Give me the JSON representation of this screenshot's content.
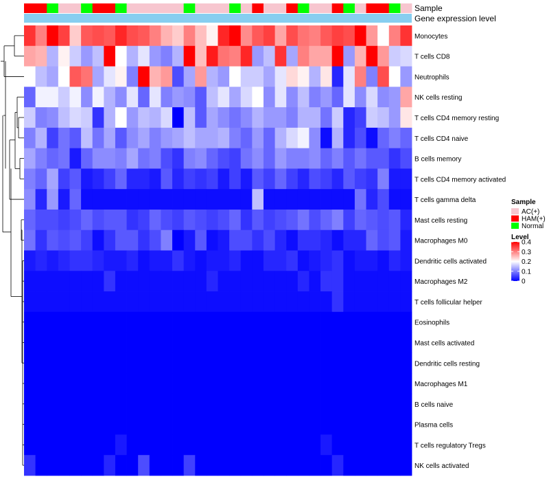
{
  "chart_data": {
    "type": "heatmap",
    "title": "",
    "annotation_rows": [
      "Sample",
      "Gene expression level"
    ],
    "rows": [
      "Monocytes",
      "T cells CD8",
      "Neutrophils",
      "NK cells resting",
      "T cells CD4 memory resting",
      "T cells CD4 naive",
      "B cells memory",
      "T cells CD4 memory activated",
      "T cells gamma delta",
      "Mast cells resting",
      "Macrophages M0",
      "Dendritic cells activated",
      "Macrophages M2",
      "T cells follicular helper",
      "Eosinophils",
      "Mast cells activated",
      "Dendritic cells resting",
      "Macrophages M1",
      "B cells naive",
      "Plasma cells",
      "T cells regulatory  Tregs",
      "NK cells activated"
    ],
    "n_samples": 34,
    "sample_groups": [
      "HAM(+)",
      "HAM(+)",
      "Normal",
      "AC(+)",
      "AC(+)",
      "Normal",
      "HAM(+)",
      "HAM(+)",
      "Normal",
      "AC(+)",
      "AC(+)",
      "AC(+)",
      "AC(+)",
      "AC(+)",
      "Normal",
      "AC(+)",
      "AC(+)",
      "AC(+)",
      "Normal",
      "AC(+)",
      "HAM(+)",
      "AC(+)",
      "AC(+)",
      "HAM(+)",
      "Normal",
      "AC(+)",
      "AC(+)",
      "HAM(+)",
      "Normal",
      "AC(+)",
      "HAM(+)",
      "HAM(+)",
      "Normal",
      "AC(+)"
    ],
    "values": [
      [
        0.36,
        0.3,
        0.4,
        0.35,
        0.24,
        0.33,
        0.34,
        0.33,
        0.37,
        0.34,
        0.33,
        0.3,
        0.26,
        0.24,
        0.3,
        0.25,
        0.21,
        0.37,
        0.4,
        0.29,
        0.33,
        0.35,
        0.27,
        0.34,
        0.31,
        0.3,
        0.33,
        0.35,
        0.34,
        0.4,
        0.28,
        0.2,
        0.3,
        0.36
      ],
      [
        0.27,
        0.26,
        0.14,
        0.21,
        0.16,
        0.12,
        0.15,
        0.4,
        0.2,
        0.14,
        0.18,
        0.12,
        0.1,
        0.14,
        0.4,
        0.25,
        0.38,
        0.31,
        0.3,
        0.37,
        0.12,
        0.15,
        0.36,
        0.13,
        0.3,
        0.27,
        0.27,
        0.4,
        0.12,
        0.26,
        0.4,
        0.28,
        0.16,
        0.17
      ],
      [
        0.2,
        0.15,
        0.13,
        0.2,
        0.33,
        0.31,
        0.13,
        0.18,
        0.21,
        0.1,
        0.4,
        0.26,
        0.28,
        0.06,
        0.13,
        0.28,
        0.14,
        0.12,
        0.2,
        0.16,
        0.16,
        0.13,
        0.18,
        0.23,
        0.21,
        0.14,
        0.22,
        0.03,
        0.18,
        0.3,
        0.1,
        0.34,
        0.2,
        0.12
      ],
      [
        0.08,
        0.19,
        0.19,
        0.16,
        0.19,
        0.11,
        0.19,
        0.14,
        0.11,
        0.18,
        0.08,
        0.18,
        0.1,
        0.12,
        0.11,
        0.07,
        0.15,
        0.18,
        0.13,
        0.17,
        0.2,
        0.11,
        0.18,
        0.11,
        0.15,
        0.1,
        0.12,
        0.08,
        0.18,
        0.11,
        0.17,
        0.11,
        0.12,
        0.27
      ],
      [
        0.16,
        0.1,
        0.11,
        0.15,
        0.17,
        0.16,
        0.04,
        0.14,
        0.2,
        0.12,
        0.15,
        0.14,
        0.17,
        0.0,
        0.15,
        0.07,
        0.13,
        0.11,
        0.09,
        0.11,
        0.14,
        0.12,
        0.12,
        0.1,
        0.14,
        0.14,
        0.09,
        0.16,
        0.03,
        0.05,
        0.16,
        0.15,
        0.12,
        0.22
      ],
      [
        0.1,
        0.14,
        0.05,
        0.09,
        0.07,
        0.15,
        0.09,
        0.13,
        0.07,
        0.11,
        0.13,
        0.1,
        0.12,
        0.13,
        0.15,
        0.13,
        0.13,
        0.14,
        0.1,
        0.08,
        0.12,
        0.08,
        0.14,
        0.17,
        0.19,
        0.11,
        0.01,
        0.14,
        0.03,
        0.06,
        0.01,
        0.08,
        0.1,
        0.08
      ],
      [
        0.13,
        0.1,
        0.08,
        0.09,
        0.02,
        0.08,
        0.11,
        0.11,
        0.1,
        0.13,
        0.09,
        0.1,
        0.06,
        0.04,
        0.1,
        0.11,
        0.08,
        0.06,
        0.05,
        0.09,
        0.11,
        0.08,
        0.12,
        0.1,
        0.1,
        0.11,
        0.08,
        0.1,
        0.07,
        0.09,
        0.07,
        0.07,
        0.04,
        0.06
      ],
      [
        0.1,
        0.08,
        0.13,
        0.05,
        0.07,
        0.02,
        0.03,
        0.05,
        0.08,
        0.03,
        0.03,
        0.02,
        0.07,
        0.03,
        0.05,
        0.04,
        0.05,
        0.02,
        0.05,
        0.02,
        0.07,
        0.05,
        0.08,
        0.05,
        0.03,
        0.06,
        0.05,
        0.03,
        0.07,
        0.05,
        0.04,
        0.1,
        0.02,
        0.02
      ],
      [
        0.11,
        0.03,
        0.12,
        0.02,
        0.08,
        0.01,
        0.01,
        0.01,
        0.01,
        0.01,
        0.01,
        0.01,
        0.01,
        0.01,
        0.01,
        0.01,
        0.01,
        0.01,
        0.01,
        0.01,
        0.15,
        0.01,
        0.01,
        0.01,
        0.01,
        0.01,
        0.01,
        0.01,
        0.01,
        0.09,
        0.03,
        0.06,
        0.01,
        0.01
      ],
      [
        0.08,
        0.06,
        0.06,
        0.05,
        0.06,
        0.08,
        0.06,
        0.07,
        0.07,
        0.04,
        0.05,
        0.08,
        0.06,
        0.05,
        0.07,
        0.06,
        0.05,
        0.06,
        0.08,
        0.04,
        0.07,
        0.05,
        0.06,
        0.07,
        0.09,
        0.06,
        0.08,
        0.1,
        0.05,
        0.08,
        0.07,
        0.06,
        0.07,
        0.03
      ],
      [
        0.09,
        0.04,
        0.07,
        0.06,
        0.07,
        0.05,
        0.01,
        0.04,
        0.07,
        0.07,
        0.04,
        0.06,
        0.1,
        0.0,
        0.02,
        0.07,
        0.01,
        0.02,
        0.06,
        0.06,
        0.04,
        0.06,
        0.03,
        0.01,
        0.04,
        0.04,
        0.03,
        0.01,
        0.03,
        0.03,
        0.08,
        0.06,
        0.07,
        0.02
      ],
      [
        0.02,
        0.03,
        0.02,
        0.03,
        0.04,
        0.04,
        0.03,
        0.02,
        0.02,
        0.03,
        0.01,
        0.02,
        0.02,
        0.04,
        0.02,
        0.01,
        0.02,
        0.02,
        0.03,
        0.01,
        0.01,
        0.03,
        0.03,
        0.04,
        0.01,
        0.02,
        0.03,
        0.04,
        0.01,
        0.02,
        0.02,
        0.01,
        0.03,
        0.02
      ],
      [
        0.01,
        0.01,
        0.01,
        0.01,
        0.01,
        0.01,
        0.01,
        0.04,
        0.01,
        0.01,
        0.01,
        0.01,
        0.01,
        0.01,
        0.01,
        0.01,
        0.03,
        0.01,
        0.01,
        0.01,
        0.01,
        0.01,
        0.01,
        0.01,
        0.03,
        0.01,
        0.04,
        0.04,
        0.01,
        0.01,
        0.01,
        0.01,
        0.01,
        0.01
      ],
      [
        0.01,
        0.01,
        0.01,
        0.01,
        0.01,
        0.01,
        0.01,
        0.01,
        0.01,
        0.01,
        0.01,
        0.01,
        0.01,
        0.01,
        0.01,
        0.01,
        0.01,
        0.01,
        0.01,
        0.01,
        0.01,
        0.01,
        0.01,
        0.01,
        0.01,
        0.01,
        0.01,
        0.04,
        0.01,
        0.01,
        0.01,
        0.01,
        0.01,
        0.01
      ],
      [
        0.0,
        0.0,
        0.0,
        0.0,
        0.0,
        0.0,
        0.0,
        0.0,
        0.0,
        0.0,
        0.0,
        0.0,
        0.0,
        0.0,
        0.0,
        0.0,
        0.0,
        0.0,
        0.0,
        0.0,
        0.0,
        0.0,
        0.0,
        0.0,
        0.0,
        0.0,
        0.0,
        0.0,
        0.0,
        0.0,
        0.0,
        0.0,
        0.0,
        0.0
      ],
      [
        0.0,
        0.0,
        0.0,
        0.0,
        0.0,
        0.0,
        0.0,
        0.0,
        0.0,
        0.0,
        0.0,
        0.0,
        0.0,
        0.0,
        0.0,
        0.0,
        0.0,
        0.0,
        0.0,
        0.0,
        0.0,
        0.0,
        0.0,
        0.0,
        0.0,
        0.0,
        0.0,
        0.0,
        0.0,
        0.0,
        0.0,
        0.0,
        0.0,
        0.0
      ],
      [
        0.0,
        0.0,
        0.0,
        0.0,
        0.0,
        0.0,
        0.0,
        0.0,
        0.0,
        0.0,
        0.0,
        0.0,
        0.0,
        0.0,
        0.0,
        0.0,
        0.0,
        0.0,
        0.0,
        0.0,
        0.0,
        0.0,
        0.0,
        0.0,
        0.0,
        0.0,
        0.0,
        0.0,
        0.0,
        0.0,
        0.0,
        0.0,
        0.0,
        0.0
      ],
      [
        0.0,
        0.0,
        0.0,
        0.0,
        0.0,
        0.0,
        0.0,
        0.0,
        0.0,
        0.0,
        0.0,
        0.0,
        0.0,
        0.0,
        0.0,
        0.0,
        0.0,
        0.0,
        0.0,
        0.0,
        0.0,
        0.0,
        0.0,
        0.0,
        0.0,
        0.0,
        0.0,
        0.0,
        0.0,
        0.0,
        0.0,
        0.0,
        0.0,
        0.0
      ],
      [
        0.0,
        0.0,
        0.0,
        0.0,
        0.0,
        0.0,
        0.0,
        0.0,
        0.0,
        0.0,
        0.0,
        0.0,
        0.0,
        0.0,
        0.0,
        0.0,
        0.0,
        0.0,
        0.0,
        0.0,
        0.0,
        0.0,
        0.0,
        0.0,
        0.0,
        0.0,
        0.0,
        0.0,
        0.0,
        0.0,
        0.0,
        0.0,
        0.0,
        0.0
      ],
      [
        0.0,
        0.0,
        0.0,
        0.0,
        0.0,
        0.0,
        0.0,
        0.0,
        0.0,
        0.0,
        0.0,
        0.0,
        0.0,
        0.0,
        0.0,
        0.0,
        0.0,
        0.0,
        0.0,
        0.0,
        0.0,
        0.0,
        0.0,
        0.0,
        0.0,
        0.0,
        0.0,
        0.0,
        0.0,
        0.0,
        0.0,
        0.0,
        0.0,
        0.0
      ],
      [
        0.0,
        0.0,
        0.0,
        0.0,
        0.0,
        0.0,
        0.0,
        0.0,
        0.02,
        0.0,
        0.0,
        0.0,
        0.0,
        0.0,
        0.0,
        0.0,
        0.0,
        0.0,
        0.0,
        0.0,
        0.0,
        0.0,
        0.0,
        0.0,
        0.0,
        0.0,
        0.02,
        0.0,
        0.0,
        0.0,
        0.0,
        0.0,
        0.0,
        0.0
      ],
      [
        0.04,
        0.0,
        0.0,
        0.0,
        0.0,
        0.0,
        0.0,
        0.03,
        0.0,
        0.0,
        0.06,
        0.0,
        0.0,
        0.0,
        0.05,
        0.0,
        0.0,
        0.0,
        0.0,
        0.0,
        0.0,
        0.0,
        0.0,
        0.0,
        0.0,
        0.0,
        0.0,
        0.03,
        0.0,
        0.0,
        0.0,
        0.0,
        0.0,
        0.0
      ]
    ],
    "legend_sample": {
      "title": "Sample",
      "items": [
        {
          "label": "AC(+)",
          "color": "#f7c6cf"
        },
        {
          "label": "HAM(+)",
          "color": "#ff0000"
        },
        {
          "label": "Normal",
          "color": "#00ff00"
        }
      ]
    },
    "legend_level": {
      "title": "Level",
      "ticks": [
        "0.4",
        "0.3",
        "0.2",
        "0.1",
        "0"
      ],
      "tick_values": [
        0.4,
        0.3,
        0.2,
        0.1,
        0
      ],
      "range": [
        0,
        0.4
      ]
    },
    "colors": {
      "low": "#0000ff",
      "mid": "#ffffff",
      "high": "#ff0000",
      "expression_bar": "#87cef0"
    }
  }
}
